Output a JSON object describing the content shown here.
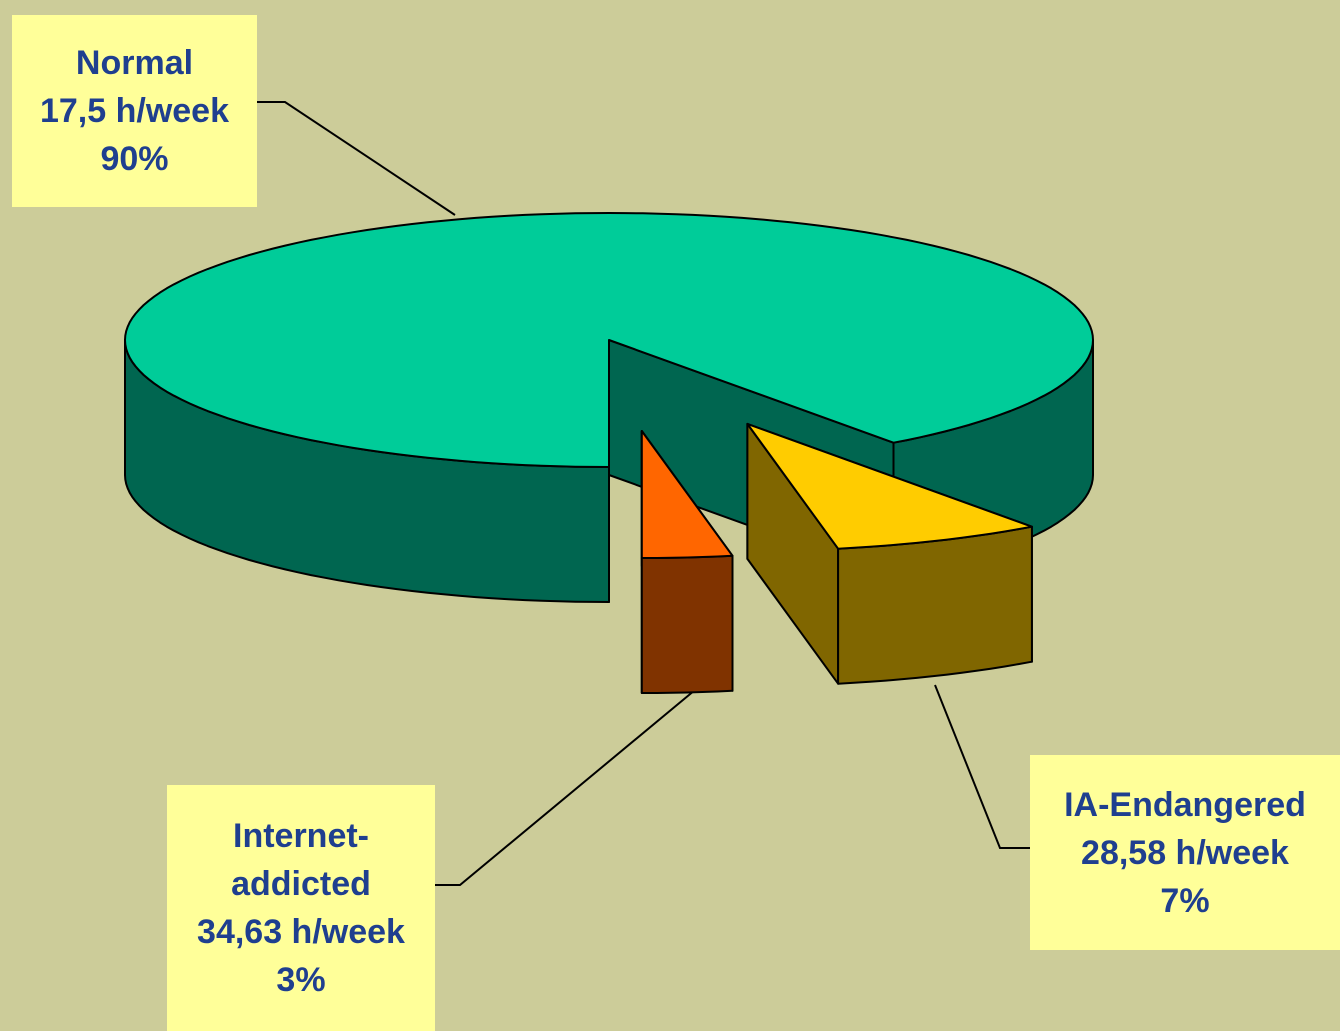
{
  "chart_data": {
    "type": "pie",
    "categories": [
      "Normal",
      "IA-Endangered",
      "Internet-addicted"
    ],
    "values": [
      90,
      7,
      3
    ],
    "value_labels": [
      "90%",
      "7%",
      "3%"
    ],
    "hours_labels": [
      "17,5 h/week",
      "28,58 h/week",
      "34,63 h/week"
    ],
    "colors": [
      "#00cc99",
      "#ffcc00",
      "#ff6600"
    ],
    "side_colors": [
      "#006650",
      "#806600",
      "#803300"
    ]
  }
}
